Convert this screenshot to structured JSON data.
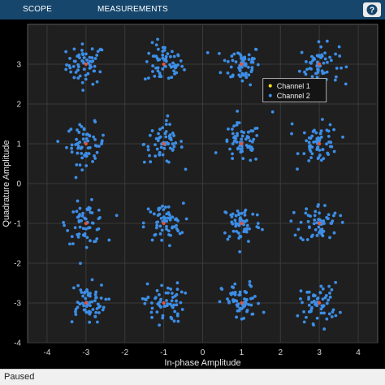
{
  "toolbar": {
    "tabs": [
      {
        "label": "SCOPE"
      },
      {
        "label": "MEASUREMENTS"
      }
    ],
    "help_icon": "question-mark-icon"
  },
  "status": {
    "text": "Paused"
  },
  "colors": {
    "toolbar_bg": "#16466c",
    "plot_bg": "#1f1f1f",
    "channel1": "#ffe01a",
    "channel2": "#3d8ee6",
    "centroid": "#e8543a"
  },
  "chart_data": {
    "type": "scatter",
    "xlabel": "In-phase Amplitude",
    "ylabel": "Quadrature Amplitude",
    "xlim": [
      -4.5,
      4.5
    ],
    "ylim": [
      -4,
      4
    ],
    "xticks": [
      "-4",
      "-3",
      "-2",
      "-1",
      "0",
      "1",
      "2",
      "3",
      "4"
    ],
    "yticks": [
      "-4",
      "-3",
      "-2",
      "-1",
      "0",
      "1",
      "2",
      "3"
    ],
    "grid": true,
    "legend_position": "top-right",
    "series": [
      {
        "name": "Channel 1",
        "color": "#ffe01a",
        "points": [
          [
            -3,
            3
          ],
          [
            -1,
            3
          ],
          [
            1,
            3
          ],
          [
            3,
            3
          ],
          [
            -3,
            1
          ],
          [
            -1,
            1
          ],
          [
            1,
            1
          ],
          [
            3,
            1
          ],
          [
            -3,
            -1
          ],
          [
            -1,
            -1
          ],
          [
            1,
            -1
          ],
          [
            3,
            -1
          ],
          [
            -3,
            -3
          ],
          [
            -1,
            -3
          ],
          [
            1,
            -3
          ],
          [
            3,
            -3
          ]
        ]
      },
      {
        "name": "Channel 2",
        "color": "#3d8ee6",
        "cluster_centers": [
          [
            -3,
            3
          ],
          [
            -1,
            3
          ],
          [
            1,
            3
          ],
          [
            3,
            3
          ],
          [
            -3,
            1
          ],
          [
            -1,
            1
          ],
          [
            1,
            1
          ],
          [
            3,
            1
          ],
          [
            -3,
            -1
          ],
          [
            -1,
            -1
          ],
          [
            1,
            -1
          ],
          [
            3,
            -1
          ],
          [
            -3,
            -3
          ],
          [
            -1,
            -3
          ],
          [
            1,
            -3
          ],
          [
            3,
            -3
          ]
        ],
        "spread": 0.25,
        "points_per_cluster": 60
      }
    ]
  }
}
